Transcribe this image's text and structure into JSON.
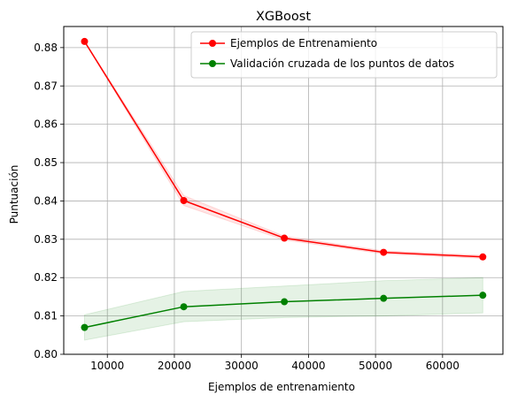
{
  "chart_data": {
    "type": "line",
    "title": "XGBoost",
    "xlabel": "Ejemplos de entrenamiento",
    "ylabel": "Puntuación",
    "xlim": [
      3500,
      69000
    ],
    "ylim": [
      0.8,
      0.8855
    ],
    "x_ticks": [
      10000,
      20000,
      30000,
      40000,
      50000,
      60000
    ],
    "y_ticks": [
      0.8,
      0.81,
      0.82,
      0.83,
      0.84,
      0.85,
      0.86,
      0.87,
      0.88
    ],
    "x_tick_labels": [
      "10000",
      "20000",
      "30000",
      "40000",
      "50000",
      "60000"
    ],
    "y_tick_labels": [
      "0.80",
      "0.81",
      "0.82",
      "0.83",
      "0.84",
      "0.85",
      "0.86",
      "0.87",
      "0.88"
    ],
    "grid": true,
    "legend_position": "top-right",
    "x": [
      6600,
      21400,
      36400,
      51200,
      66000
    ],
    "series": [
      {
        "name": "Ejemplos de Entrenamiento",
        "color": "#ff0000",
        "values": [
          0.8816,
          0.8401,
          0.8303,
          0.8266,
          0.8254
        ],
        "band_lower": [
          0.8816,
          0.8388,
          0.8298,
          0.8262,
          0.825
        ],
        "band_upper": [
          0.8816,
          0.8414,
          0.8308,
          0.827,
          0.8258
        ]
      },
      {
        "name": "Validación cruzada de los puntos de datos",
        "color": "#008000",
        "values": [
          0.807,
          0.8124,
          0.8137,
          0.8146,
          0.8154
        ],
        "band_lower": [
          0.8037,
          0.8085,
          0.8096,
          0.81,
          0.8108
        ],
        "band_upper": [
          0.8103,
          0.8164,
          0.8178,
          0.8192,
          0.82
        ]
      }
    ]
  }
}
